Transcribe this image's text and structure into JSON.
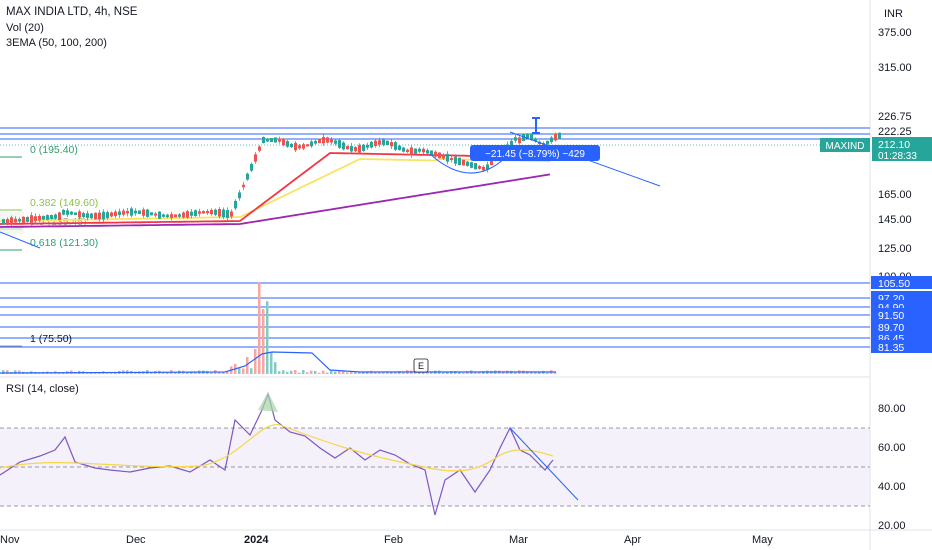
{
  "header": {
    "symbol_line": "MAX INDIA LTD, 4h, NSE",
    "vol_line": "Vol (20)",
    "ema_line": "3EMA (50, 100, 200)",
    "currency": "INR"
  },
  "colors": {
    "up": "#26a69a",
    "down": "#ef5350",
    "ema50": "#f7e463",
    "ema100": "#f23645",
    "ema200": "#9c27b0",
    "levels": "#2962ff",
    "fib": "#2f9e6e",
    "rsi_line": "#7e57c2",
    "rsi_ma": "#f5d74a",
    "vol_ma": "#2962ff"
  },
  "price_axis": {
    "ticks": [
      "375.00",
      "315.00",
      "226.75",
      "222.25",
      "165.00",
      "145.00",
      "125.00",
      "100.00"
    ],
    "last_price_label": "MAXIND",
    "last_price": "212.10",
    "countdown": "01:28:33"
  },
  "level_lines": [
    "105.50",
    "97.20",
    "94.90",
    "91.50",
    "89.70",
    "86.45",
    "81.35"
  ],
  "fib_labels": [
    "0 (195.40)",
    "0.382 (149.60)",
    "0.5 (135.45)",
    "0.618 (121.30)",
    "1 (75.50)"
  ],
  "measure_box": "−21.45 (−8.79%) −429",
  "earnings_marker": "E",
  "rsi": {
    "title": "RSI (14, close)",
    "ticks": [
      "80.00",
      "60.00",
      "40.00",
      "20.00"
    ]
  },
  "time_axis": {
    "labels": [
      "Nov",
      "Dec",
      "2024",
      "Feb",
      "Mar",
      "Apr",
      "May"
    ]
  },
  "chart_data": {
    "type": "line",
    "title": "MAX INDIA LTD, 4h, NSE",
    "series": [
      {
        "name": "price",
        "x": [
          "Nov",
          "Dec",
          "2024",
          "Feb",
          "Mar"
        ],
        "values": [
          140,
          138,
          212,
          205,
          212.1
        ]
      },
      {
        "name": "RSI (14, close)",
        "x": [
          "Nov",
          "Dec",
          "2024",
          "Feb",
          "Mar"
        ],
        "values": [
          50,
          48,
          75,
          30,
          52
        ]
      }
    ],
    "last_price": 212.1,
    "ylabel": "INR"
  }
}
